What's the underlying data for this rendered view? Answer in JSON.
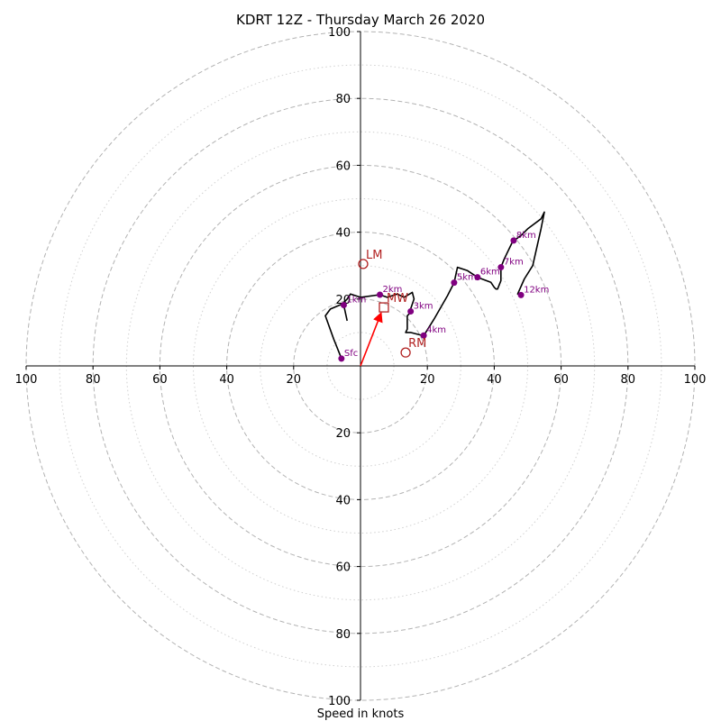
{
  "chart_data": {
    "type": "scatter",
    "title": "KDRT 12Z - Thursday March 26 2020",
    "xlabel": "Speed in knots",
    "ylabel": "",
    "xlim": [
      -100,
      100
    ],
    "ylim": [
      -100,
      100
    ],
    "ring_major": [
      20,
      40,
      60,
      80,
      100
    ],
    "ring_minor": [
      10,
      30,
      50,
      70,
      90
    ],
    "ticks": [
      {
        "v": -100,
        "label": "100"
      },
      {
        "v": -80,
        "label": "80"
      },
      {
        "v": -60,
        "label": "60"
      },
      {
        "v": -40,
        "label": "40"
      },
      {
        "v": -20,
        "label": "20"
      },
      {
        "v": 20,
        "label": "20"
      },
      {
        "v": 40,
        "label": "40"
      },
      {
        "v": 60,
        "label": "60"
      },
      {
        "v": 80,
        "label": "80"
      },
      {
        "v": 100,
        "label": "100"
      }
    ],
    "hodograph_trace": {
      "color": "#000000",
      "points": [
        [
          -5.7,
          2.2
        ],
        [
          -8,
          8
        ],
        [
          -10.5,
          15
        ],
        [
          -9,
          17
        ],
        [
          -5.5,
          18.5
        ],
        [
          -4,
          20
        ],
        [
          -3,
          21.5
        ],
        [
          0,
          20.5
        ],
        [
          5.8,
          21.3
        ],
        [
          8,
          20.5
        ],
        [
          11,
          21.5
        ],
        [
          13,
          20.5
        ],
        [
          15.5,
          22
        ],
        [
          16,
          20
        ],
        [
          15,
          17
        ],
        [
          15,
          16
        ],
        [
          14,
          15
        ],
        [
          14,
          11
        ],
        [
          13.5,
          10
        ],
        [
          15,
          10
        ],
        [
          18.9,
          9
        ],
        [
          22,
          14
        ],
        [
          26,
          21
        ],
        [
          28,
          24.9
        ],
        [
          29,
          29.5
        ],
        [
          32,
          28.5
        ],
        [
          35,
          26.5
        ],
        [
          39,
          25
        ],
        [
          40,
          23.5
        ],
        [
          40.5,
          23
        ],
        [
          41,
          23
        ],
        [
          42,
          25.5
        ],
        [
          42,
          27
        ],
        [
          42,
          29.5
        ],
        [
          43,
          32
        ],
        [
          45.5,
          37.2
        ],
        [
          48,
          39
        ],
        [
          50,
          41
        ],
        [
          54,
          44
        ],
        [
          55,
          46
        ],
        [
          54,
          41
        ],
        [
          51.5,
          30
        ],
        [
          49,
          26
        ],
        [
          47,
          21.5
        ],
        [
          48,
          21.2
        ]
      ]
    },
    "height_points": [
      {
        "label": "Sfc",
        "u": -5.7,
        "v": 2.2
      },
      {
        "label": "1km",
        "u": -5,
        "v": 18.2
      },
      {
        "label": "2km",
        "u": 5.8,
        "v": 21.3
      },
      {
        "label": "3km",
        "u": 15,
        "v": 16.3
      },
      {
        "label": "4km",
        "u": 18.9,
        "v": 9.1
      },
      {
        "label": "5km",
        "u": 28,
        "v": 24.9
      },
      {
        "label": "6km",
        "u": 35,
        "v": 26.5
      },
      {
        "label": "7km",
        "u": 42,
        "v": 29.5
      },
      {
        "label": "8km",
        "u": 45.8,
        "v": 37.5
      },
      {
        "label": "12km",
        "u": 48,
        "v": 21.2
      }
    ],
    "trace_extra": [
      [
        -5,
        18.2
      ],
      [
        -4,
        13.5
      ]
    ],
    "motion_markers": [
      {
        "label": "LM",
        "u": 0.8,
        "v": 30.5,
        "shape": "circle"
      },
      {
        "label": "RM",
        "u": 13.5,
        "v": 4,
        "shape": "circle"
      },
      {
        "label": "MW",
        "u": 7,
        "v": 17.5,
        "shape": "square"
      }
    ],
    "mean_wind_vector": {
      "u": 7,
      "v": 17.5,
      "color": "#ff0000"
    },
    "colors": {
      "trace": "#000000",
      "points": "#800080",
      "markers": "#b22222",
      "rings": "#b3b3b3"
    }
  }
}
